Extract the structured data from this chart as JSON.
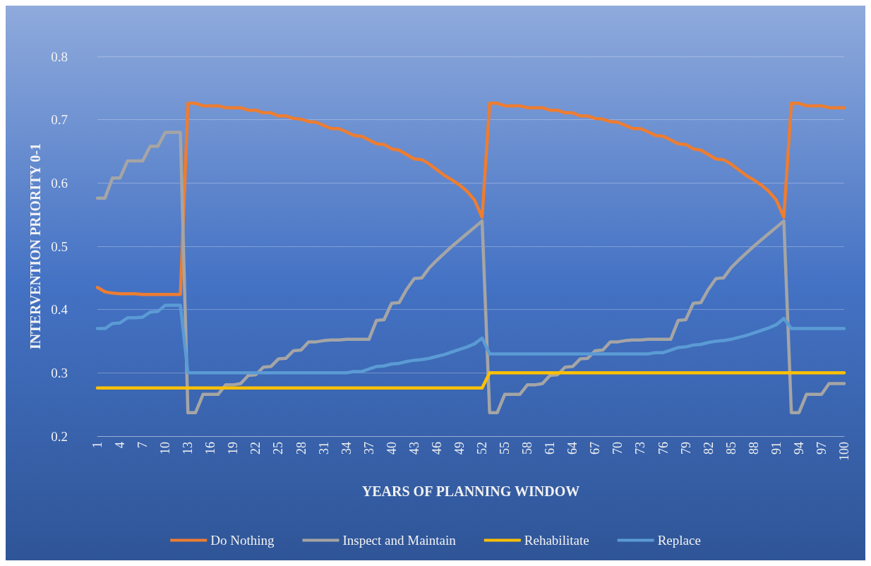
{
  "chart_data": {
    "type": "line",
    "xlabel": "YEARS OF PLANNING WINDOW",
    "ylabel": "INTERVENTION PRIORITY 0-1",
    "categories": [
      "1",
      null,
      null,
      "4",
      null,
      null,
      "7",
      null,
      null,
      "10",
      null,
      null,
      "13",
      null,
      null,
      "16",
      null,
      null,
      "19",
      null,
      null,
      "22",
      null,
      null,
      "25",
      null,
      null,
      "28",
      null,
      null,
      "31",
      null,
      null,
      "34",
      null,
      null,
      "37",
      null,
      null,
      "40",
      null,
      null,
      "43",
      null,
      null,
      "46",
      null,
      null,
      "49",
      null,
      null,
      "52",
      null,
      null,
      "55",
      null,
      null,
      "58",
      null,
      null,
      "61",
      null,
      null,
      "64",
      null,
      null,
      "67",
      null,
      null,
      "70",
      null,
      null,
      "73",
      null,
      null,
      "76",
      null,
      null,
      "79",
      null,
      null,
      "82",
      null,
      null,
      "85",
      null,
      null,
      "88",
      null,
      null,
      "91",
      null,
      null,
      "94",
      null,
      null,
      "97",
      null,
      null,
      "100"
    ],
    "series": [
      {
        "name": "Do Nothing",
        "color": "#ed7d31",
        "values": [
          0.435,
          0.428,
          0.426,
          0.425,
          0.425,
          0.425,
          0.424,
          0.424,
          0.424,
          0.424,
          0.424,
          0.424,
          0.726,
          0.726,
          0.722,
          0.722,
          0.722,
          0.719,
          0.719,
          0.719,
          0.715,
          0.715,
          0.711,
          0.711,
          0.706,
          0.706,
          0.702,
          0.701,
          0.697,
          0.696,
          0.691,
          0.686,
          0.686,
          0.681,
          0.675,
          0.674,
          0.668,
          0.662,
          0.661,
          0.654,
          0.652,
          0.645,
          0.638,
          0.637,
          0.63,
          0.621,
          0.612,
          0.605,
          0.597,
          0.587,
          0.573,
          0.546,
          0.726,
          0.726,
          0.722,
          0.722,
          0.722,
          0.719,
          0.719,
          0.719,
          0.715,
          0.715,
          0.711,
          0.711,
          0.706,
          0.706,
          0.702,
          0.701,
          0.697,
          0.696,
          0.691,
          0.686,
          0.686,
          0.681,
          0.675,
          0.674,
          0.668,
          0.662,
          0.661,
          0.654,
          0.652,
          0.645,
          0.638,
          0.637,
          0.63,
          0.621,
          0.612,
          0.605,
          0.597,
          0.587,
          0.573,
          0.546,
          0.726,
          0.726,
          0.722,
          0.722,
          0.722,
          0.719,
          0.719,
          0.719
        ]
      },
      {
        "name": "Inspect and Maintain",
        "color": "#a5a5a5",
        "values": [
          0.576,
          0.576,
          0.608,
          0.608,
          0.635,
          0.635,
          0.635,
          0.658,
          0.658,
          0.68,
          0.68,
          0.68,
          0.237,
          0.237,
          0.266,
          0.266,
          0.266,
          0.281,
          0.281,
          0.283,
          0.296,
          0.297,
          0.309,
          0.31,
          0.322,
          0.323,
          0.335,
          0.336,
          0.349,
          0.349,
          0.351,
          0.352,
          0.352,
          0.353,
          0.353,
          0.353,
          0.353,
          0.383,
          0.384,
          0.41,
          0.411,
          0.432,
          0.449,
          0.45,
          0.466,
          0.478,
          0.489,
          0.5,
          0.51,
          0.52,
          0.53,
          0.54,
          0.237,
          0.237,
          0.266,
          0.266,
          0.266,
          0.281,
          0.281,
          0.283,
          0.296,
          0.297,
          0.309,
          0.31,
          0.322,
          0.323,
          0.335,
          0.336,
          0.349,
          0.349,
          0.351,
          0.352,
          0.352,
          0.353,
          0.353,
          0.353,
          0.353,
          0.383,
          0.384,
          0.41,
          0.411,
          0.432,
          0.449,
          0.45,
          0.466,
          0.478,
          0.489,
          0.5,
          0.51,
          0.52,
          0.53,
          0.54,
          0.237,
          0.237,
          0.266,
          0.266,
          0.266,
          0.283,
          0.283,
          0.283
        ]
      },
      {
        "name": "Rehabilitate",
        "color": "#ffc000",
        "values": [
          0.276,
          0.276,
          0.276,
          0.276,
          0.276,
          0.276,
          0.276,
          0.276,
          0.276,
          0.276,
          0.276,
          0.276,
          0.276,
          0.276,
          0.276,
          0.276,
          0.276,
          0.276,
          0.276,
          0.276,
          0.276,
          0.276,
          0.276,
          0.276,
          0.276,
          0.276,
          0.276,
          0.276,
          0.276,
          0.276,
          0.276,
          0.276,
          0.276,
          0.276,
          0.276,
          0.276,
          0.276,
          0.276,
          0.276,
          0.276,
          0.276,
          0.276,
          0.276,
          0.276,
          0.276,
          0.276,
          0.276,
          0.276,
          0.276,
          0.276,
          0.276,
          0.276,
          0.3,
          0.3,
          0.3,
          0.3,
          0.3,
          0.3,
          0.3,
          0.3,
          0.3,
          0.3,
          0.3,
          0.3,
          0.3,
          0.3,
          0.3,
          0.3,
          0.3,
          0.3,
          0.3,
          0.3,
          0.3,
          0.3,
          0.3,
          0.3,
          0.3,
          0.3,
          0.3,
          0.3,
          0.3,
          0.3,
          0.3,
          0.3,
          0.3,
          0.3,
          0.3,
          0.3,
          0.3,
          0.3,
          0.3,
          0.3,
          0.3,
          0.3,
          0.3,
          0.3,
          0.3,
          0.3,
          0.3,
          0.3
        ]
      },
      {
        "name": "Replace",
        "color": "#5b9bd5",
        "values": [
          0.37,
          0.37,
          0.378,
          0.379,
          0.387,
          0.387,
          0.388,
          0.396,
          0.397,
          0.407,
          0.407,
          0.407,
          0.3,
          0.3,
          0.3,
          0.3,
          0.3,
          0.3,
          0.3,
          0.3,
          0.3,
          0.3,
          0.3,
          0.3,
          0.3,
          0.3,
          0.3,
          0.3,
          0.3,
          0.3,
          0.3,
          0.3,
          0.3,
          0.3,
          0.302,
          0.302,
          0.306,
          0.31,
          0.311,
          0.314,
          0.315,
          0.318,
          0.32,
          0.321,
          0.323,
          0.326,
          0.329,
          0.333,
          0.337,
          0.341,
          0.346,
          0.355,
          0.33,
          0.33,
          0.33,
          0.33,
          0.33,
          0.33,
          0.33,
          0.33,
          0.33,
          0.33,
          0.33,
          0.33,
          0.33,
          0.33,
          0.33,
          0.33,
          0.33,
          0.33,
          0.33,
          0.33,
          0.33,
          0.33,
          0.332,
          0.332,
          0.336,
          0.34,
          0.341,
          0.344,
          0.345,
          0.348,
          0.35,
          0.351,
          0.353,
          0.356,
          0.359,
          0.363,
          0.367,
          0.371,
          0.376,
          0.386,
          0.37,
          0.37,
          0.37,
          0.37,
          0.37,
          0.37,
          0.37,
          0.37
        ]
      }
    ],
    "ylim": [
      0.2,
      0.8
    ],
    "yticks": [
      0.2,
      0.3,
      0.4,
      0.5,
      0.6,
      0.7,
      0.8
    ],
    "grid": "y",
    "legend": "bottom",
    "marker": "none",
    "line_style": "solid"
  }
}
